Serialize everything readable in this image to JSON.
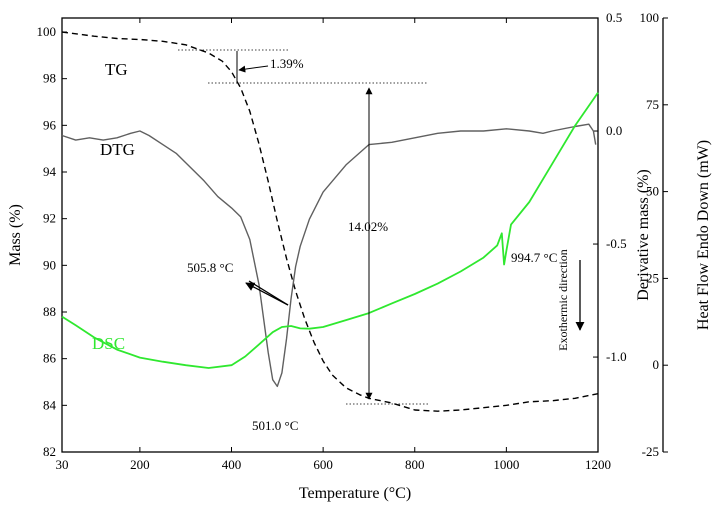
{
  "chart_data": {
    "type": "line",
    "xlabel": "Temperature (°C)",
    "xlim": [
      30,
      1200
    ],
    "xticks": [
      30,
      200,
      400,
      600,
      800,
      1000,
      1200
    ],
    "axes": {
      "mass": {
        "label": "Mass (%)",
        "ylim": [
          82,
          100.6
        ],
        "ticks": [
          82,
          84,
          86,
          88,
          90,
          92,
          94,
          96,
          98,
          100
        ]
      },
      "deriv": {
        "label": "Derivative mass (%)",
        "ylim": [
          -1.42,
          0.5
        ],
        "ticks": [
          -1.0,
          -0.5,
          0.0,
          0.5
        ],
        "tick_labels": [
          "-1.0",
          "-0.5",
          "0.0",
          "0.5"
        ]
      },
      "heat": {
        "label": "Heat Flow Endo Down (mW)",
        "ylim": [
          -25,
          100
        ],
        "ticks": [
          -25,
          0,
          25,
          50,
          75,
          100
        ]
      }
    },
    "series": [
      {
        "name": "TG",
        "axis": "mass",
        "color": "#000000",
        "style": "dashed",
        "x": [
          30,
          100,
          150,
          200,
          250,
          300,
          350,
          380,
          400,
          420,
          440,
          460,
          480,
          500,
          520,
          540,
          560,
          580,
          600,
          620,
          650,
          680,
          700,
          750,
          800,
          850,
          900,
          950,
          1000,
          1050,
          1100,
          1150,
          1200
        ],
        "y": [
          100.0,
          99.82,
          99.72,
          99.68,
          99.6,
          99.45,
          99.1,
          98.75,
          98.3,
          97.6,
          96.6,
          95.2,
          93.6,
          91.9,
          90.3,
          88.9,
          87.7,
          86.7,
          85.9,
          85.3,
          84.75,
          84.45,
          84.3,
          84.1,
          83.8,
          83.75,
          83.8,
          83.9,
          84.0,
          84.15,
          84.2,
          84.3,
          84.5
        ]
      },
      {
        "name": "DTG",
        "axis": "deriv",
        "color": "#606060",
        "style": "solid",
        "x": [
          30,
          60,
          90,
          120,
          150,
          180,
          200,
          220,
          250,
          280,
          310,
          340,
          370,
          400,
          420,
          440,
          460,
          470,
          480,
          490,
          500,
          510,
          520,
          530,
          540,
          550,
          570,
          600,
          650,
          700,
          750,
          800,
          850,
          900,
          950,
          1000,
          1050,
          1080,
          1100,
          1150,
          1180,
          1190,
          1195
        ],
        "y": [
          -0.02,
          -0.04,
          -0.03,
          -0.04,
          -0.03,
          -0.01,
          0.0,
          -0.02,
          -0.06,
          -0.1,
          -0.16,
          -0.22,
          -0.29,
          -0.34,
          -0.38,
          -0.48,
          -0.68,
          -0.83,
          -0.98,
          -1.1,
          -1.13,
          -1.07,
          -0.92,
          -0.74,
          -0.6,
          -0.51,
          -0.39,
          -0.27,
          -0.15,
          -0.06,
          -0.05,
          -0.03,
          -0.01,
          0.0,
          0.0,
          0.01,
          0.0,
          -0.01,
          0.0,
          0.02,
          0.03,
          0.0,
          -0.06
        ]
      },
      {
        "name": "DSC",
        "axis": "heat",
        "color": "#2fe82f",
        "style": "solid",
        "x": [
          30,
          60,
          100,
          150,
          200,
          250,
          300,
          350,
          400,
          430,
          460,
          490,
          510,
          530,
          550,
          570,
          600,
          650,
          700,
          750,
          800,
          850,
          900,
          950,
          980,
          990,
          995,
          1000,
          1010,
          1050,
          1100,
          1150,
          1200
        ],
        "y": [
          14.0,
          11.5,
          8.0,
          4.5,
          2.2,
          1.0,
          0.0,
          -0.8,
          0.0,
          2.5,
          6.0,
          9.5,
          11.0,
          11.3,
          10.6,
          10.5,
          11.0,
          13.0,
          15.0,
          17.8,
          20.5,
          23.5,
          27.0,
          31.0,
          34.5,
          38.0,
          29.0,
          33.0,
          40.5,
          47.0,
          58.0,
          69.0,
          78.5
        ]
      }
    ],
    "annotations": [
      {
        "text": "1.39%"
      },
      {
        "text": "14.02%"
      },
      {
        "text": "505.8 °C"
      },
      {
        "text": "501.0 °C"
      },
      {
        "text": "994.7 °C"
      },
      {
        "text": "Exothermic direction"
      }
    ]
  }
}
